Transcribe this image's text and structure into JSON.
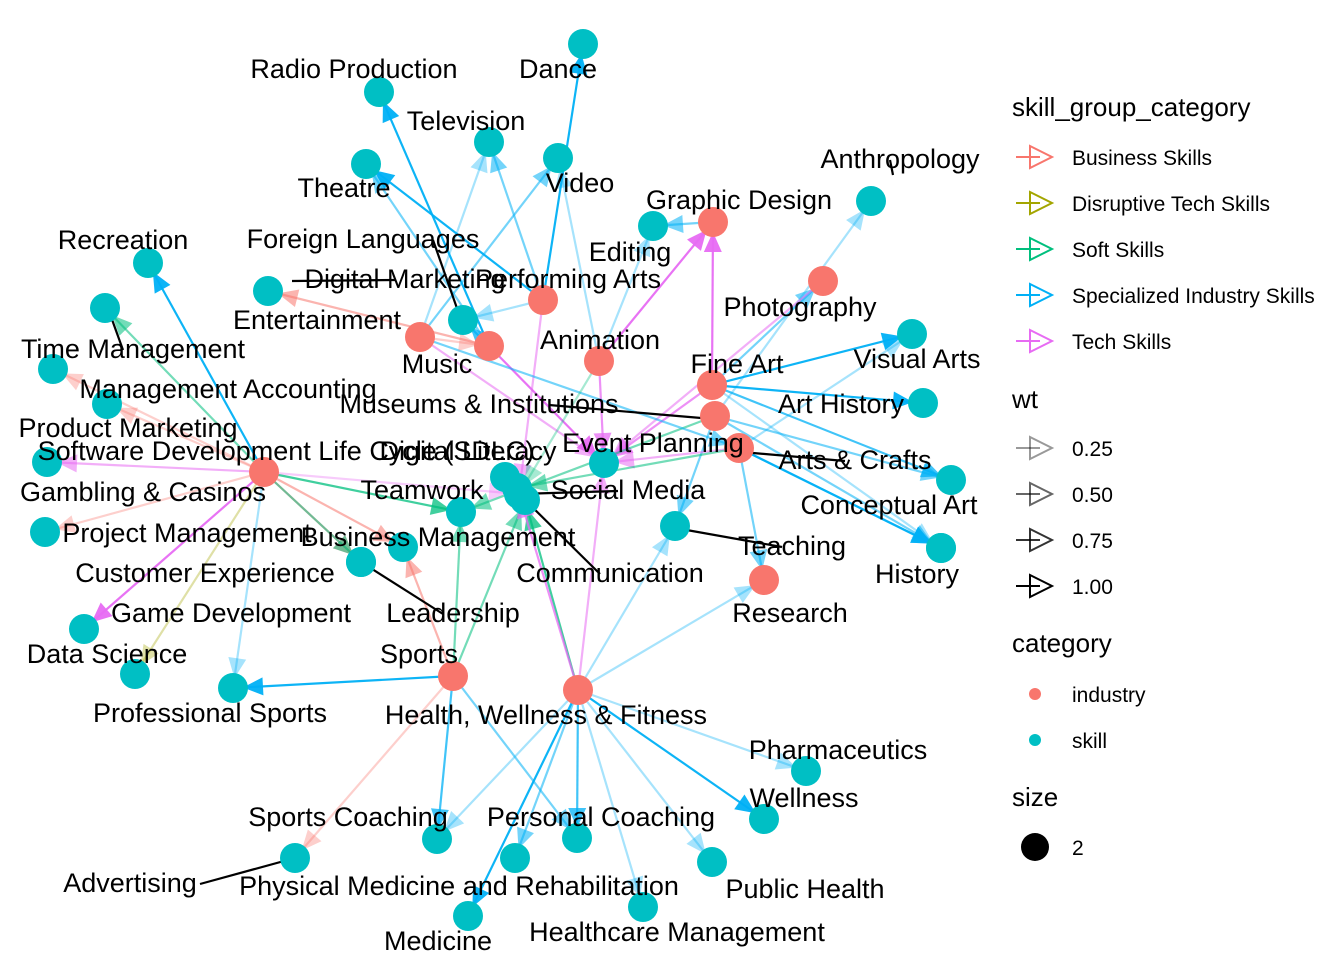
{
  "legend": {
    "edge_color_title": "skill_group_category",
    "edge_color_items": [
      {
        "label": "Business Skills",
        "color": "#F8766D"
      },
      {
        "label": "Disruptive Tech Skills",
        "color": "#A3A500"
      },
      {
        "label": "Soft Skills",
        "color": "#00BF7D"
      },
      {
        "label": "Specialized Industry Skills",
        "color": "#00B0F6"
      },
      {
        "label": "Tech Skills",
        "color": "#E76BF3"
      }
    ],
    "wt_title": "wt",
    "wt_items": [
      {
        "label": "0.25",
        "value": 0.25
      },
      {
        "label": "0.50",
        "value": 0.5
      },
      {
        "label": "0.75",
        "value": 0.75
      },
      {
        "label": "1.00",
        "value": 1.0
      }
    ],
    "category_title": "category",
    "category_items": [
      {
        "label": "industry",
        "color": "#F8766D"
      },
      {
        "label": "skill",
        "color": "#00BFC4"
      }
    ],
    "size_title": "size",
    "size_items": [
      {
        "label": "2"
      }
    ]
  },
  "nodes": [
    {
      "id": "graphic-design",
      "label": "Graphic Design",
      "category": "industry"
    },
    {
      "id": "photography",
      "label": "Photography",
      "category": "industry"
    },
    {
      "id": "performing-arts",
      "label": "Performing Arts",
      "category": "industry"
    },
    {
      "id": "entertainment",
      "label": "Entertainment",
      "category": "industry"
    },
    {
      "id": "music",
      "label": "Music",
      "category": "industry"
    },
    {
      "id": "animation",
      "label": "Animation",
      "category": "industry"
    },
    {
      "id": "fine-art",
      "label": "Fine Art",
      "category": "industry"
    },
    {
      "id": "museums",
      "label": "Museums & Institutions",
      "category": "industry"
    },
    {
      "id": "event-planning",
      "label": "Event Planning",
      "category": "industry"
    },
    {
      "id": "gambling",
      "label": "Gambling & Casinos",
      "category": "industry"
    },
    {
      "id": "research",
      "label": "Research",
      "category": "industry"
    },
    {
      "id": "sports",
      "label": "Sports",
      "category": "industry"
    },
    {
      "id": "health",
      "label": "Health, Wellness & Fitness",
      "category": "industry"
    },
    {
      "id": "dance",
      "label": "Dance",
      "category": "skill"
    },
    {
      "id": "radio",
      "label": "Radio Production",
      "category": "skill"
    },
    {
      "id": "television",
      "label": "Television",
      "category": "skill"
    },
    {
      "id": "video",
      "label": "Video",
      "category": "skill"
    },
    {
      "id": "theatre",
      "label": "Theatre",
      "category": "skill"
    },
    {
      "id": "anthropology",
      "label": "Anthropology",
      "category": "skill"
    },
    {
      "id": "editing",
      "label": "Editing",
      "category": "skill"
    },
    {
      "id": "recreation",
      "label": "Recreation",
      "category": "skill"
    },
    {
      "id": "foreign-languages",
      "label": "Foreign Languages",
      "category": "skill"
    },
    {
      "id": "digital-marketing",
      "label": "Digital Marketing",
      "category": "skill"
    },
    {
      "id": "time-management",
      "label": "Time Management",
      "category": "skill"
    },
    {
      "id": "mgmt-accounting",
      "label": "Management Accounting",
      "category": "skill"
    },
    {
      "id": "product-marketing",
      "label": "Product Marketing",
      "category": "skill"
    },
    {
      "id": "sdlc",
      "label": "Software Development Life Cycle (SDLC)",
      "category": "skill"
    },
    {
      "id": "digital-literacy",
      "label": "Digital Literacy",
      "category": "skill"
    },
    {
      "id": "visual-arts",
      "label": "Visual Arts",
      "category": "skill"
    },
    {
      "id": "art-history",
      "label": "Art History",
      "category": "skill"
    },
    {
      "id": "arts-crafts",
      "label": "Arts & Crafts",
      "category": "skill"
    },
    {
      "id": "conceptual-art",
      "label": "Conceptual Art",
      "category": "skill"
    },
    {
      "id": "history",
      "label": "History",
      "category": "skill"
    },
    {
      "id": "teamwork",
      "label": "Teamwork",
      "category": "skill"
    },
    {
      "id": "social-media",
      "label": "Social Media",
      "category": "skill"
    },
    {
      "id": "teaching",
      "label": "Teaching",
      "category": "skill"
    },
    {
      "id": "project-mgmt",
      "label": "Project Management",
      "category": "skill"
    },
    {
      "id": "business-mgmt",
      "label": "Business Management",
      "category": "skill"
    },
    {
      "id": "communication",
      "label": "Communication",
      "category": "skill"
    },
    {
      "id": "customer-exp",
      "label": "Customer Experience",
      "category": "skill"
    },
    {
      "id": "leadership",
      "label": "Leadership",
      "category": "skill"
    },
    {
      "id": "game-dev",
      "label": "Game Development",
      "category": "skill"
    },
    {
      "id": "data-science",
      "label": "Data Science",
      "category": "skill"
    },
    {
      "id": "pro-sports",
      "label": "Professional Sports",
      "category": "skill"
    },
    {
      "id": "pharmaceutics",
      "label": "Pharmaceutics",
      "category": "skill"
    },
    {
      "id": "wellness",
      "label": "Wellness",
      "category": "skill"
    },
    {
      "id": "sports-coaching",
      "label": "Sports Coaching",
      "category": "skill"
    },
    {
      "id": "personal-coaching",
      "label": "Personal Coaching",
      "category": "skill"
    },
    {
      "id": "advertising",
      "label": "Advertising",
      "category": "skill"
    },
    {
      "id": "pmr",
      "label": "Physical Medicine and Rehabilitation",
      "category": "skill"
    },
    {
      "id": "public-health",
      "label": "Public Health",
      "category": "skill"
    },
    {
      "id": "healthcare-mgmt",
      "label": "Healthcare Management",
      "category": "skill"
    },
    {
      "id": "medicine",
      "label": "Medicine",
      "category": "skill"
    },
    {
      "id": "hub-a",
      "label": "",
      "category": "skill"
    },
    {
      "id": "hub-b",
      "label": "",
      "category": "skill"
    }
  ],
  "edges": [
    {
      "from": "performing-arts",
      "to": "dance",
      "group": "Specialized Industry Skills",
      "wt": 1.0
    },
    {
      "from": "music",
      "to": "radio",
      "group": "Specialized Industry Skills",
      "wt": 1.0
    },
    {
      "from": "performing-arts",
      "to": "television",
      "group": "Specialized Industry Skills",
      "wt": 0.5
    },
    {
      "from": "entertainment",
      "to": "video",
      "group": "Specialized Industry Skills",
      "wt": 0.5
    },
    {
      "from": "animation",
      "to": "video",
      "group": "Specialized Industry Skills",
      "wt": 0.25
    },
    {
      "from": "performing-arts",
      "to": "theatre",
      "group": "Specialized Industry Skills",
      "wt": 1.0
    },
    {
      "from": "museums",
      "to": "anthropology",
      "group": "Specialized Industry Skills",
      "wt": 0.25
    },
    {
      "from": "graphic-design",
      "to": "editing",
      "group": "Specialized Industry Skills",
      "wt": 0.5
    },
    {
      "from": "gambling",
      "to": "recreation",
      "group": "Specialized Industry Skills",
      "wt": 1.0
    },
    {
      "from": "music",
      "to": "foreign-languages",
      "group": "Specialized Industry Skills",
      "wt": 0.75
    },
    {
      "from": "music",
      "to": "digital-marketing",
      "group": "Business Skills",
      "wt": 0.5
    },
    {
      "from": "gambling",
      "to": "time-management",
      "group": "Soft Skills",
      "wt": 0.5
    },
    {
      "from": "gambling",
      "to": "mgmt-accounting",
      "group": "Business Skills",
      "wt": 0.25
    },
    {
      "from": "gambling",
      "to": "product-marketing",
      "group": "Business Skills",
      "wt": 0.25
    },
    {
      "from": "gambling",
      "to": "sdlc",
      "group": "Tech Skills",
      "wt": 0.5
    },
    {
      "from": "gambling",
      "to": "project-mgmt",
      "group": "Business Skills",
      "wt": 0.25
    },
    {
      "from": "gambling",
      "to": "customer-exp",
      "group": "Business Skills",
      "wt": 0.5
    },
    {
      "from": "gambling",
      "to": "game-dev",
      "group": "Tech Skills",
      "wt": 1.0
    },
    {
      "from": "gambling",
      "to": "data-science",
      "group": "Disruptive Tech Skills",
      "wt": 0.25
    },
    {
      "from": "gambling",
      "to": "pro-sports",
      "group": "Specialized Industry Skills",
      "wt": 0.25
    },
    {
      "from": "gambling",
      "to": "teamwork",
      "group": "Soft Skills",
      "wt": 0.75
    },
    {
      "from": "gambling",
      "to": "leadership",
      "group": "Soft Skills",
      "wt": 0.5
    },
    {
      "from": "gambling",
      "to": "business-mgmt",
      "group": "Business Skills",
      "wt": 0.5
    },
    {
      "from": "gambling",
      "to": "social-media",
      "group": "Tech Skills",
      "wt": 0.25
    },
    {
      "from": "fine-art",
      "to": "graphic-design",
      "group": "Tech Skills",
      "wt": 1.0
    },
    {
      "from": "fine-art",
      "to": "photography",
      "group": "Specialized Industry Skills",
      "wt": 0.5
    },
    {
      "from": "fine-art",
      "to": "visual-arts",
      "group": "Specialized Industry Skills",
      "wt": 1.0
    },
    {
      "from": "fine-art",
      "to": "art-history",
      "group": "Specialized Industry Skills",
      "wt": 1.0
    },
    {
      "from": "museums",
      "to": "arts-crafts",
      "group": "Specialized Industry Skills",
      "wt": 0.5
    },
    {
      "from": "event-planning",
      "to": "conceptual-art",
      "group": "Specialized Industry Skills",
      "wt": 0.5
    },
    {
      "from": "event-planning",
      "to": "history",
      "group": "Specialized Industry Skills",
      "wt": 1.0
    },
    {
      "from": "museums",
      "to": "teaching",
      "group": "Specialized Industry Skills",
      "wt": 0.5
    },
    {
      "from": "event-planning",
      "to": "research",
      "group": "Specialized Industry Skills",
      "wt": 0.5
    },
    {
      "from": "animation",
      "to": "graphic-design",
      "group": "Tech Skills",
      "wt": 1.0
    },
    {
      "from": "music",
      "to": "hub-a",
      "group": "Tech Skills",
      "wt": 1.0
    },
    {
      "from": "animation",
      "to": "hub-a",
      "group": "Tech Skills",
      "wt": 0.75
    },
    {
      "from": "fine-art",
      "to": "hub-a",
      "group": "Tech Skills",
      "wt": 0.75
    },
    {
      "from": "event-planning",
      "to": "hub-a",
      "group": "Tech Skills",
      "wt": 0.5
    },
    {
      "from": "health",
      "to": "hub-b",
      "group": "Soft Skills",
      "wt": 0.75
    },
    {
      "from": "sports",
      "to": "hub-b",
      "group": "Soft Skills",
      "wt": 0.5
    },
    {
      "from": "health",
      "to": "communication",
      "group": "Tech Skills",
      "wt": 0.75
    },
    {
      "from": "sports",
      "to": "teamwork",
      "group": "Soft Skills",
      "wt": 0.5
    },
    {
      "from": "sports",
      "to": "business-mgmt",
      "group": "Business Skills",
      "wt": 0.5
    },
    {
      "from": "sports",
      "to": "pro-sports",
      "group": "Specialized Industry Skills",
      "wt": 1.0
    },
    {
      "from": "sports",
      "to": "advertising",
      "group": "Business Skills",
      "wt": 0.25
    },
    {
      "from": "sports",
      "to": "sports-coaching",
      "group": "Specialized Industry Skills",
      "wt": 0.75
    },
    {
      "from": "sports",
      "to": "personal-coaching",
      "group": "Specialized Industry Skills",
      "wt": 0.5
    },
    {
      "from": "health",
      "to": "wellness",
      "group": "Specialized Industry Skills",
      "wt": 1.0
    },
    {
      "from": "health",
      "to": "pharmaceutics",
      "group": "Specialized Industry Skills",
      "wt": 0.25
    },
    {
      "from": "health",
      "to": "personal-coaching",
      "group": "Specialized Industry Skills",
      "wt": 0.75
    },
    {
      "from": "health",
      "to": "pmr",
      "group": "Specialized Industry Skills",
      "wt": 0.5
    },
    {
      "from": "health",
      "to": "public-health",
      "group": "Specialized Industry Skills",
      "wt": 0.25
    },
    {
      "from": "health",
      "to": "healthcare-mgmt",
      "group": "Specialized Industry Skills",
      "wt": 0.25
    },
    {
      "from": "health",
      "to": "medicine",
      "group": "Specialized Industry Skills",
      "wt": 1.0
    },
    {
      "from": "health",
      "to": "teaching",
      "group": "Specialized Industry Skills",
      "wt": 0.25
    },
    {
      "from": "health",
      "to": "sports-coaching",
      "group": "Specialized Industry Skills",
      "wt": 0.25
    },
    {
      "from": "health",
      "to": "research",
      "group": "Specialized Industry Skills",
      "wt": 0.25
    },
    {
      "from": "health",
      "to": "hub-a",
      "group": "Tech Skills",
      "wt": 0.5
    },
    {
      "from": "performing-arts",
      "to": "social-media",
      "group": "Tech Skills",
      "wt": 0.5
    },
    {
      "from": "entertainment",
      "to": "television",
      "group": "Specialized Industry Skills",
      "wt": 0.25
    },
    {
      "from": "photography",
      "to": "hub-a",
      "group": "Tech Skills",
      "wt": 0.5
    },
    {
      "from": "museums",
      "to": "teamwork",
      "group": "Soft Skills",
      "wt": 0.5
    },
    {
      "from": "event-planning",
      "to": "communication",
      "group": "Soft Skills",
      "wt": 0.5
    },
    {
      "from": "event-planning",
      "to": "visual-arts",
      "group": "Specialized Industry Skills",
      "wt": 0.25
    },
    {
      "from": "fine-art",
      "to": "arts-crafts",
      "group": "Specialized Industry Skills",
      "wt": 0.75
    },
    {
      "from": "fine-art",
      "to": "conceptual-art",
      "group": "Specialized Industry Skills",
      "wt": 0.25
    },
    {
      "from": "animation",
      "to": "editing",
      "group": "Specialized Industry Skills",
      "wt": 0.25
    },
    {
      "from": "performing-arts",
      "to": "foreign-languages",
      "group": "Specialized Industry Skills",
      "wt": 0.25
    },
    {
      "from": "music",
      "to": "theatre",
      "group": "Specialized Industry Skills",
      "wt": 0.5
    },
    {
      "from": "entertainment",
      "to": "event-planning",
      "group": "Specialized Industry Skills",
      "wt": 0.5
    },
    {
      "from": "entertainment",
      "to": "hub-a",
      "group": "Tech Skills",
      "wt": 0.5
    },
    {
      "from": "entertainment",
      "to": "music",
      "group": "Business Skills",
      "wt": 0.25
    },
    {
      "from": "animation",
      "to": "social-media",
      "group": "Soft Skills",
      "wt": 0.25
    },
    {
      "from": "museums",
      "to": "history",
      "group": "Specialized Industry Skills",
      "wt": 0.5
    }
  ]
}
